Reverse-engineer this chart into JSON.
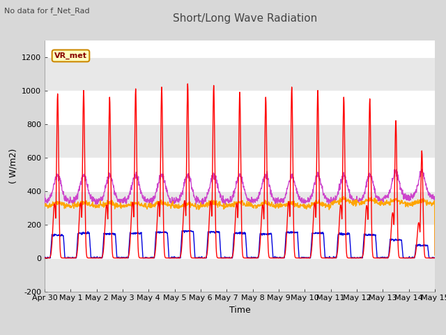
{
  "title": "Short/Long Wave Radiation",
  "xlabel": "Time",
  "ylabel": "( W/m2)",
  "ylim": [
    -200,
    1300
  ],
  "xlim": [
    0,
    15.0
  ],
  "yticks": [
    -200,
    0,
    200,
    400,
    600,
    800,
    1000,
    1200
  ],
  "xtick_labels": [
    "Apr 30",
    "May 1",
    "May 2",
    "May 3",
    "May 4",
    "May 5",
    "May 6",
    "May 7",
    "May 8",
    "May 9",
    "May 10",
    "May 11",
    "May 12",
    "May 13",
    "May 14",
    "May 15"
  ],
  "xtick_positions": [
    0,
    1,
    2,
    3,
    4,
    5,
    6,
    7,
    8,
    9,
    10,
    11,
    12,
    13,
    14,
    15
  ],
  "colors": {
    "SW_in": "#ff0000",
    "LW_in": "#ffa500",
    "SW_out": "#0000dd",
    "LW_out": "#cc44cc"
  },
  "background_color": "#d8d8d8",
  "plot_bg_color": "#ffffff",
  "grid_color_light": "#f0f0f0",
  "grid_color_dark": "#d0d0d0",
  "annotation_text": "No data for f_Net_Rad",
  "legend_box_text": "VR_met",
  "legend_box_color": "#ffffc0",
  "legend_box_edge": "#cc8800",
  "title_fontsize": 11,
  "label_fontsize": 9,
  "tick_fontsize": 8
}
